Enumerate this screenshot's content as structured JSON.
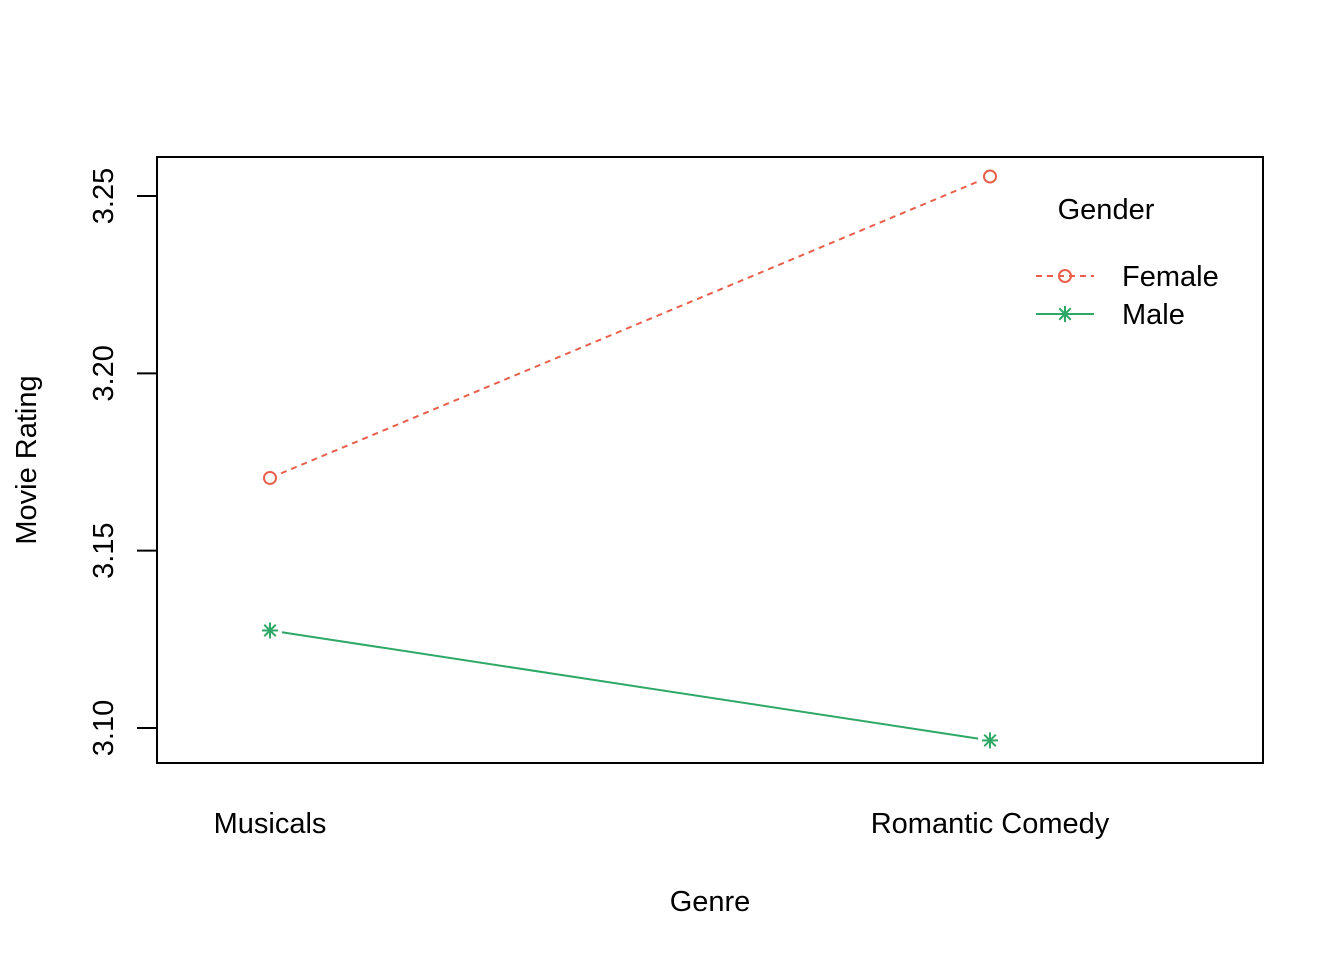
{
  "chart_data": {
    "type": "line",
    "title": "",
    "xlabel": "Genre",
    "ylabel": "Movie Rating",
    "categories": [
      "Musicals",
      "Romantic Comedy"
    ],
    "ylim": [
      3.09,
      3.261
    ],
    "yticks": [
      "3.10",
      "3.15",
      "3.20",
      "3.25"
    ],
    "grid": false,
    "legend": {
      "title": "Gender",
      "position": "top-right"
    },
    "series": [
      {
        "name": "Female",
        "values": [
          3.1705,
          3.2555
        ],
        "color": "#E8604C",
        "line": "dashed",
        "marker": "circle"
      },
      {
        "name": "Male",
        "values": [
          3.1275,
          3.0965
        ],
        "color": "#2EA866",
        "line": "solid",
        "marker": "asterisk"
      }
    ]
  }
}
